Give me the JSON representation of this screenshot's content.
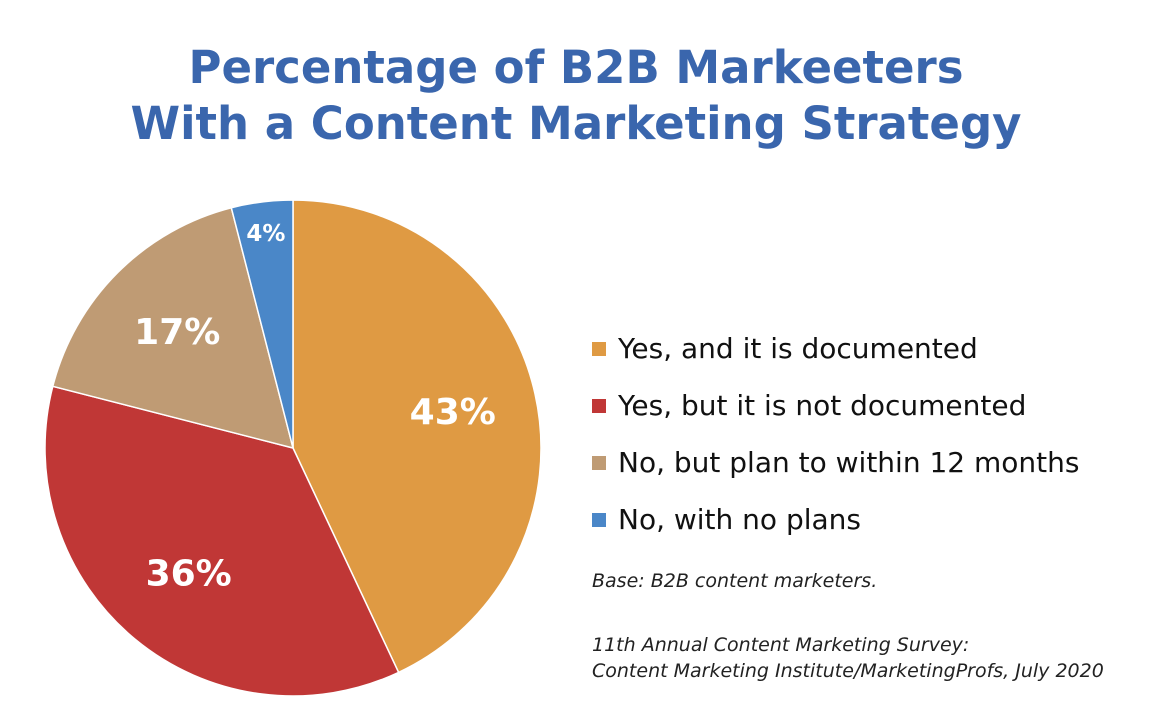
{
  "chart_data": {
    "type": "pie",
    "title_lines": [
      "Percentage of B2B Markeeters",
      "With a Content Marketing Strategy"
    ],
    "categories": [
      "Yes, and it is documented",
      "Yes, but it is not documented",
      "No, but plan to within 12 months",
      "No, with no plans"
    ],
    "values": [
      43,
      36,
      17,
      4
    ],
    "value_labels": [
      "43%",
      "36%",
      "17%",
      "4%"
    ],
    "colors": [
      "#df9a43",
      "#c03736",
      "#bf9b74",
      "#4a87c8"
    ],
    "legend_position": "right",
    "start_angle": "12 o'clock",
    "direction": "clockwise"
  },
  "notes": {
    "base": "Base: B2B content marketers.",
    "source_line1": "11th Annual Content Marketing Survey:",
    "source_line2": "Content Marketing Institute/MarketingProfs, July 2020"
  }
}
